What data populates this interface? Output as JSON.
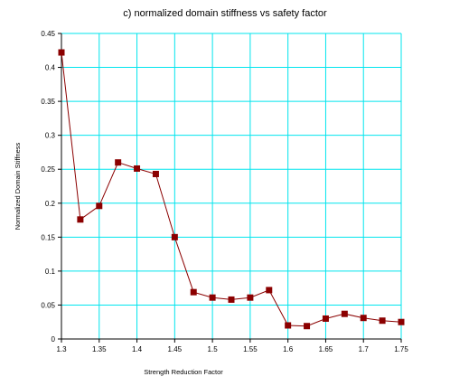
{
  "chart_data": {
    "type": "line",
    "title": "c) normalized domain stiffness vs safety factor",
    "xlabel": "Strength Reduction Factor",
    "ylabel": "Normalized Domain Stiffness",
    "xlim": [
      1.3,
      1.75
    ],
    "ylim": [
      0,
      0.45
    ],
    "grid": true,
    "x_ticks": [
      "1.3",
      "1.35",
      "1.4",
      "1.45",
      "1.5",
      "1.55",
      "1.6",
      "1.65",
      "1.7",
      "1.75"
    ],
    "y_ticks": [
      "0",
      "0.05",
      "0.1",
      "0.15",
      "0.2",
      "0.25",
      "0.3",
      "0.35",
      "0.4",
      "0.45"
    ],
    "series": [
      {
        "x": [
          1.3,
          1.325,
          1.35,
          1.375,
          1.4,
          1.425,
          1.45,
          1.475,
          1.5,
          1.525,
          1.55,
          1.575,
          1.6,
          1.625,
          1.65,
          1.675,
          1.7,
          1.725,
          1.75
        ],
        "y": [
          0.422,
          0.176,
          0.196,
          0.26,
          0.251,
          0.243,
          0.15,
          0.069,
          0.061,
          0.058,
          0.061,
          0.072,
          0.02,
          0.019,
          0.03,
          0.037,
          0.031,
          0.027,
          0.025
        ]
      }
    ],
    "colors": {
      "line": "#8b0000",
      "marker": "#8b0000",
      "grid": "#00e5ee",
      "axis": "#000000"
    }
  }
}
